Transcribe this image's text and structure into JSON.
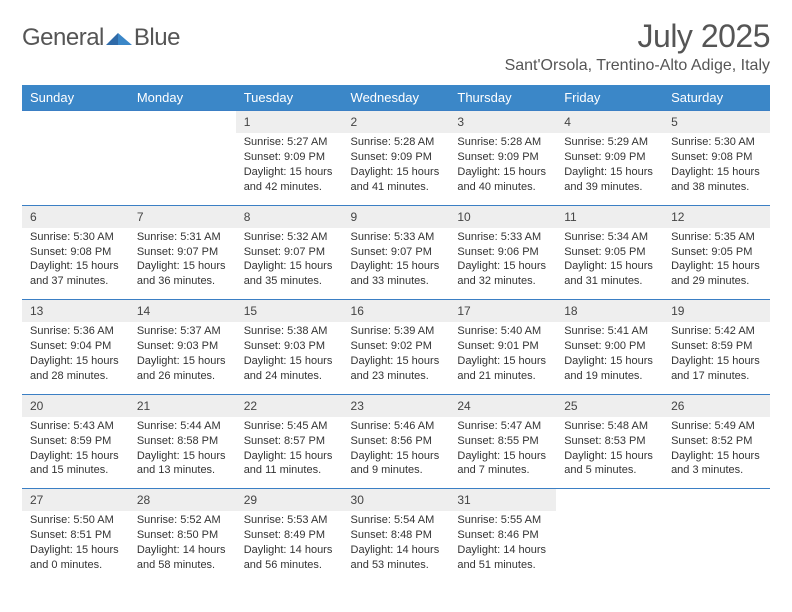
{
  "brand": {
    "word1": "General",
    "word2": "Blue"
  },
  "title": "July 2025",
  "location": "Sant'Orsola, Trentino-Alto Adige, Italy",
  "colors": {
    "header_bg": "#3b87c8",
    "header_text": "#ffffff",
    "daynum_bg": "#eeeeee",
    "rule": "#3b7fc4",
    "body_text": "#333333",
    "title_text": "#555555",
    "logo_gray": "#555555",
    "logo_blue": "#3b7fc4",
    "page_bg": "#ffffff"
  },
  "day_headers": [
    "Sunday",
    "Monday",
    "Tuesday",
    "Wednesday",
    "Thursday",
    "Friday",
    "Saturday"
  ],
  "weeks": [
    [
      null,
      null,
      {
        "n": "1",
        "sr": "Sunrise: 5:27 AM",
        "ss": "Sunset: 9:09 PM",
        "d1": "Daylight: 15 hours",
        "d2": "and 42 minutes."
      },
      {
        "n": "2",
        "sr": "Sunrise: 5:28 AM",
        "ss": "Sunset: 9:09 PM",
        "d1": "Daylight: 15 hours",
        "d2": "and 41 minutes."
      },
      {
        "n": "3",
        "sr": "Sunrise: 5:28 AM",
        "ss": "Sunset: 9:09 PM",
        "d1": "Daylight: 15 hours",
        "d2": "and 40 minutes."
      },
      {
        "n": "4",
        "sr": "Sunrise: 5:29 AM",
        "ss": "Sunset: 9:09 PM",
        "d1": "Daylight: 15 hours",
        "d2": "and 39 minutes."
      },
      {
        "n": "5",
        "sr": "Sunrise: 5:30 AM",
        "ss": "Sunset: 9:08 PM",
        "d1": "Daylight: 15 hours",
        "d2": "and 38 minutes."
      }
    ],
    [
      {
        "n": "6",
        "sr": "Sunrise: 5:30 AM",
        "ss": "Sunset: 9:08 PM",
        "d1": "Daylight: 15 hours",
        "d2": "and 37 minutes."
      },
      {
        "n": "7",
        "sr": "Sunrise: 5:31 AM",
        "ss": "Sunset: 9:07 PM",
        "d1": "Daylight: 15 hours",
        "d2": "and 36 minutes."
      },
      {
        "n": "8",
        "sr": "Sunrise: 5:32 AM",
        "ss": "Sunset: 9:07 PM",
        "d1": "Daylight: 15 hours",
        "d2": "and 35 minutes."
      },
      {
        "n": "9",
        "sr": "Sunrise: 5:33 AM",
        "ss": "Sunset: 9:07 PM",
        "d1": "Daylight: 15 hours",
        "d2": "and 33 minutes."
      },
      {
        "n": "10",
        "sr": "Sunrise: 5:33 AM",
        "ss": "Sunset: 9:06 PM",
        "d1": "Daylight: 15 hours",
        "d2": "and 32 minutes."
      },
      {
        "n": "11",
        "sr": "Sunrise: 5:34 AM",
        "ss": "Sunset: 9:05 PM",
        "d1": "Daylight: 15 hours",
        "d2": "and 31 minutes."
      },
      {
        "n": "12",
        "sr": "Sunrise: 5:35 AM",
        "ss": "Sunset: 9:05 PM",
        "d1": "Daylight: 15 hours",
        "d2": "and 29 minutes."
      }
    ],
    [
      {
        "n": "13",
        "sr": "Sunrise: 5:36 AM",
        "ss": "Sunset: 9:04 PM",
        "d1": "Daylight: 15 hours",
        "d2": "and 28 minutes."
      },
      {
        "n": "14",
        "sr": "Sunrise: 5:37 AM",
        "ss": "Sunset: 9:03 PM",
        "d1": "Daylight: 15 hours",
        "d2": "and 26 minutes."
      },
      {
        "n": "15",
        "sr": "Sunrise: 5:38 AM",
        "ss": "Sunset: 9:03 PM",
        "d1": "Daylight: 15 hours",
        "d2": "and 24 minutes."
      },
      {
        "n": "16",
        "sr": "Sunrise: 5:39 AM",
        "ss": "Sunset: 9:02 PM",
        "d1": "Daylight: 15 hours",
        "d2": "and 23 minutes."
      },
      {
        "n": "17",
        "sr": "Sunrise: 5:40 AM",
        "ss": "Sunset: 9:01 PM",
        "d1": "Daylight: 15 hours",
        "d2": "and 21 minutes."
      },
      {
        "n": "18",
        "sr": "Sunrise: 5:41 AM",
        "ss": "Sunset: 9:00 PM",
        "d1": "Daylight: 15 hours",
        "d2": "and 19 minutes."
      },
      {
        "n": "19",
        "sr": "Sunrise: 5:42 AM",
        "ss": "Sunset: 8:59 PM",
        "d1": "Daylight: 15 hours",
        "d2": "and 17 minutes."
      }
    ],
    [
      {
        "n": "20",
        "sr": "Sunrise: 5:43 AM",
        "ss": "Sunset: 8:59 PM",
        "d1": "Daylight: 15 hours",
        "d2": "and 15 minutes."
      },
      {
        "n": "21",
        "sr": "Sunrise: 5:44 AM",
        "ss": "Sunset: 8:58 PM",
        "d1": "Daylight: 15 hours",
        "d2": "and 13 minutes."
      },
      {
        "n": "22",
        "sr": "Sunrise: 5:45 AM",
        "ss": "Sunset: 8:57 PM",
        "d1": "Daylight: 15 hours",
        "d2": "and 11 minutes."
      },
      {
        "n": "23",
        "sr": "Sunrise: 5:46 AM",
        "ss": "Sunset: 8:56 PM",
        "d1": "Daylight: 15 hours",
        "d2": "and 9 minutes."
      },
      {
        "n": "24",
        "sr": "Sunrise: 5:47 AM",
        "ss": "Sunset: 8:55 PM",
        "d1": "Daylight: 15 hours",
        "d2": "and 7 minutes."
      },
      {
        "n": "25",
        "sr": "Sunrise: 5:48 AM",
        "ss": "Sunset: 8:53 PM",
        "d1": "Daylight: 15 hours",
        "d2": "and 5 minutes."
      },
      {
        "n": "26",
        "sr": "Sunrise: 5:49 AM",
        "ss": "Sunset: 8:52 PM",
        "d1": "Daylight: 15 hours",
        "d2": "and 3 minutes."
      }
    ],
    [
      {
        "n": "27",
        "sr": "Sunrise: 5:50 AM",
        "ss": "Sunset: 8:51 PM",
        "d1": "Daylight: 15 hours",
        "d2": "and 0 minutes."
      },
      {
        "n": "28",
        "sr": "Sunrise: 5:52 AM",
        "ss": "Sunset: 8:50 PM",
        "d1": "Daylight: 14 hours",
        "d2": "and 58 minutes."
      },
      {
        "n": "29",
        "sr": "Sunrise: 5:53 AM",
        "ss": "Sunset: 8:49 PM",
        "d1": "Daylight: 14 hours",
        "d2": "and 56 minutes."
      },
      {
        "n": "30",
        "sr": "Sunrise: 5:54 AM",
        "ss": "Sunset: 8:48 PM",
        "d1": "Daylight: 14 hours",
        "d2": "and 53 minutes."
      },
      {
        "n": "31",
        "sr": "Sunrise: 5:55 AM",
        "ss": "Sunset: 8:46 PM",
        "d1": "Daylight: 14 hours",
        "d2": "and 51 minutes."
      },
      null,
      null
    ]
  ]
}
